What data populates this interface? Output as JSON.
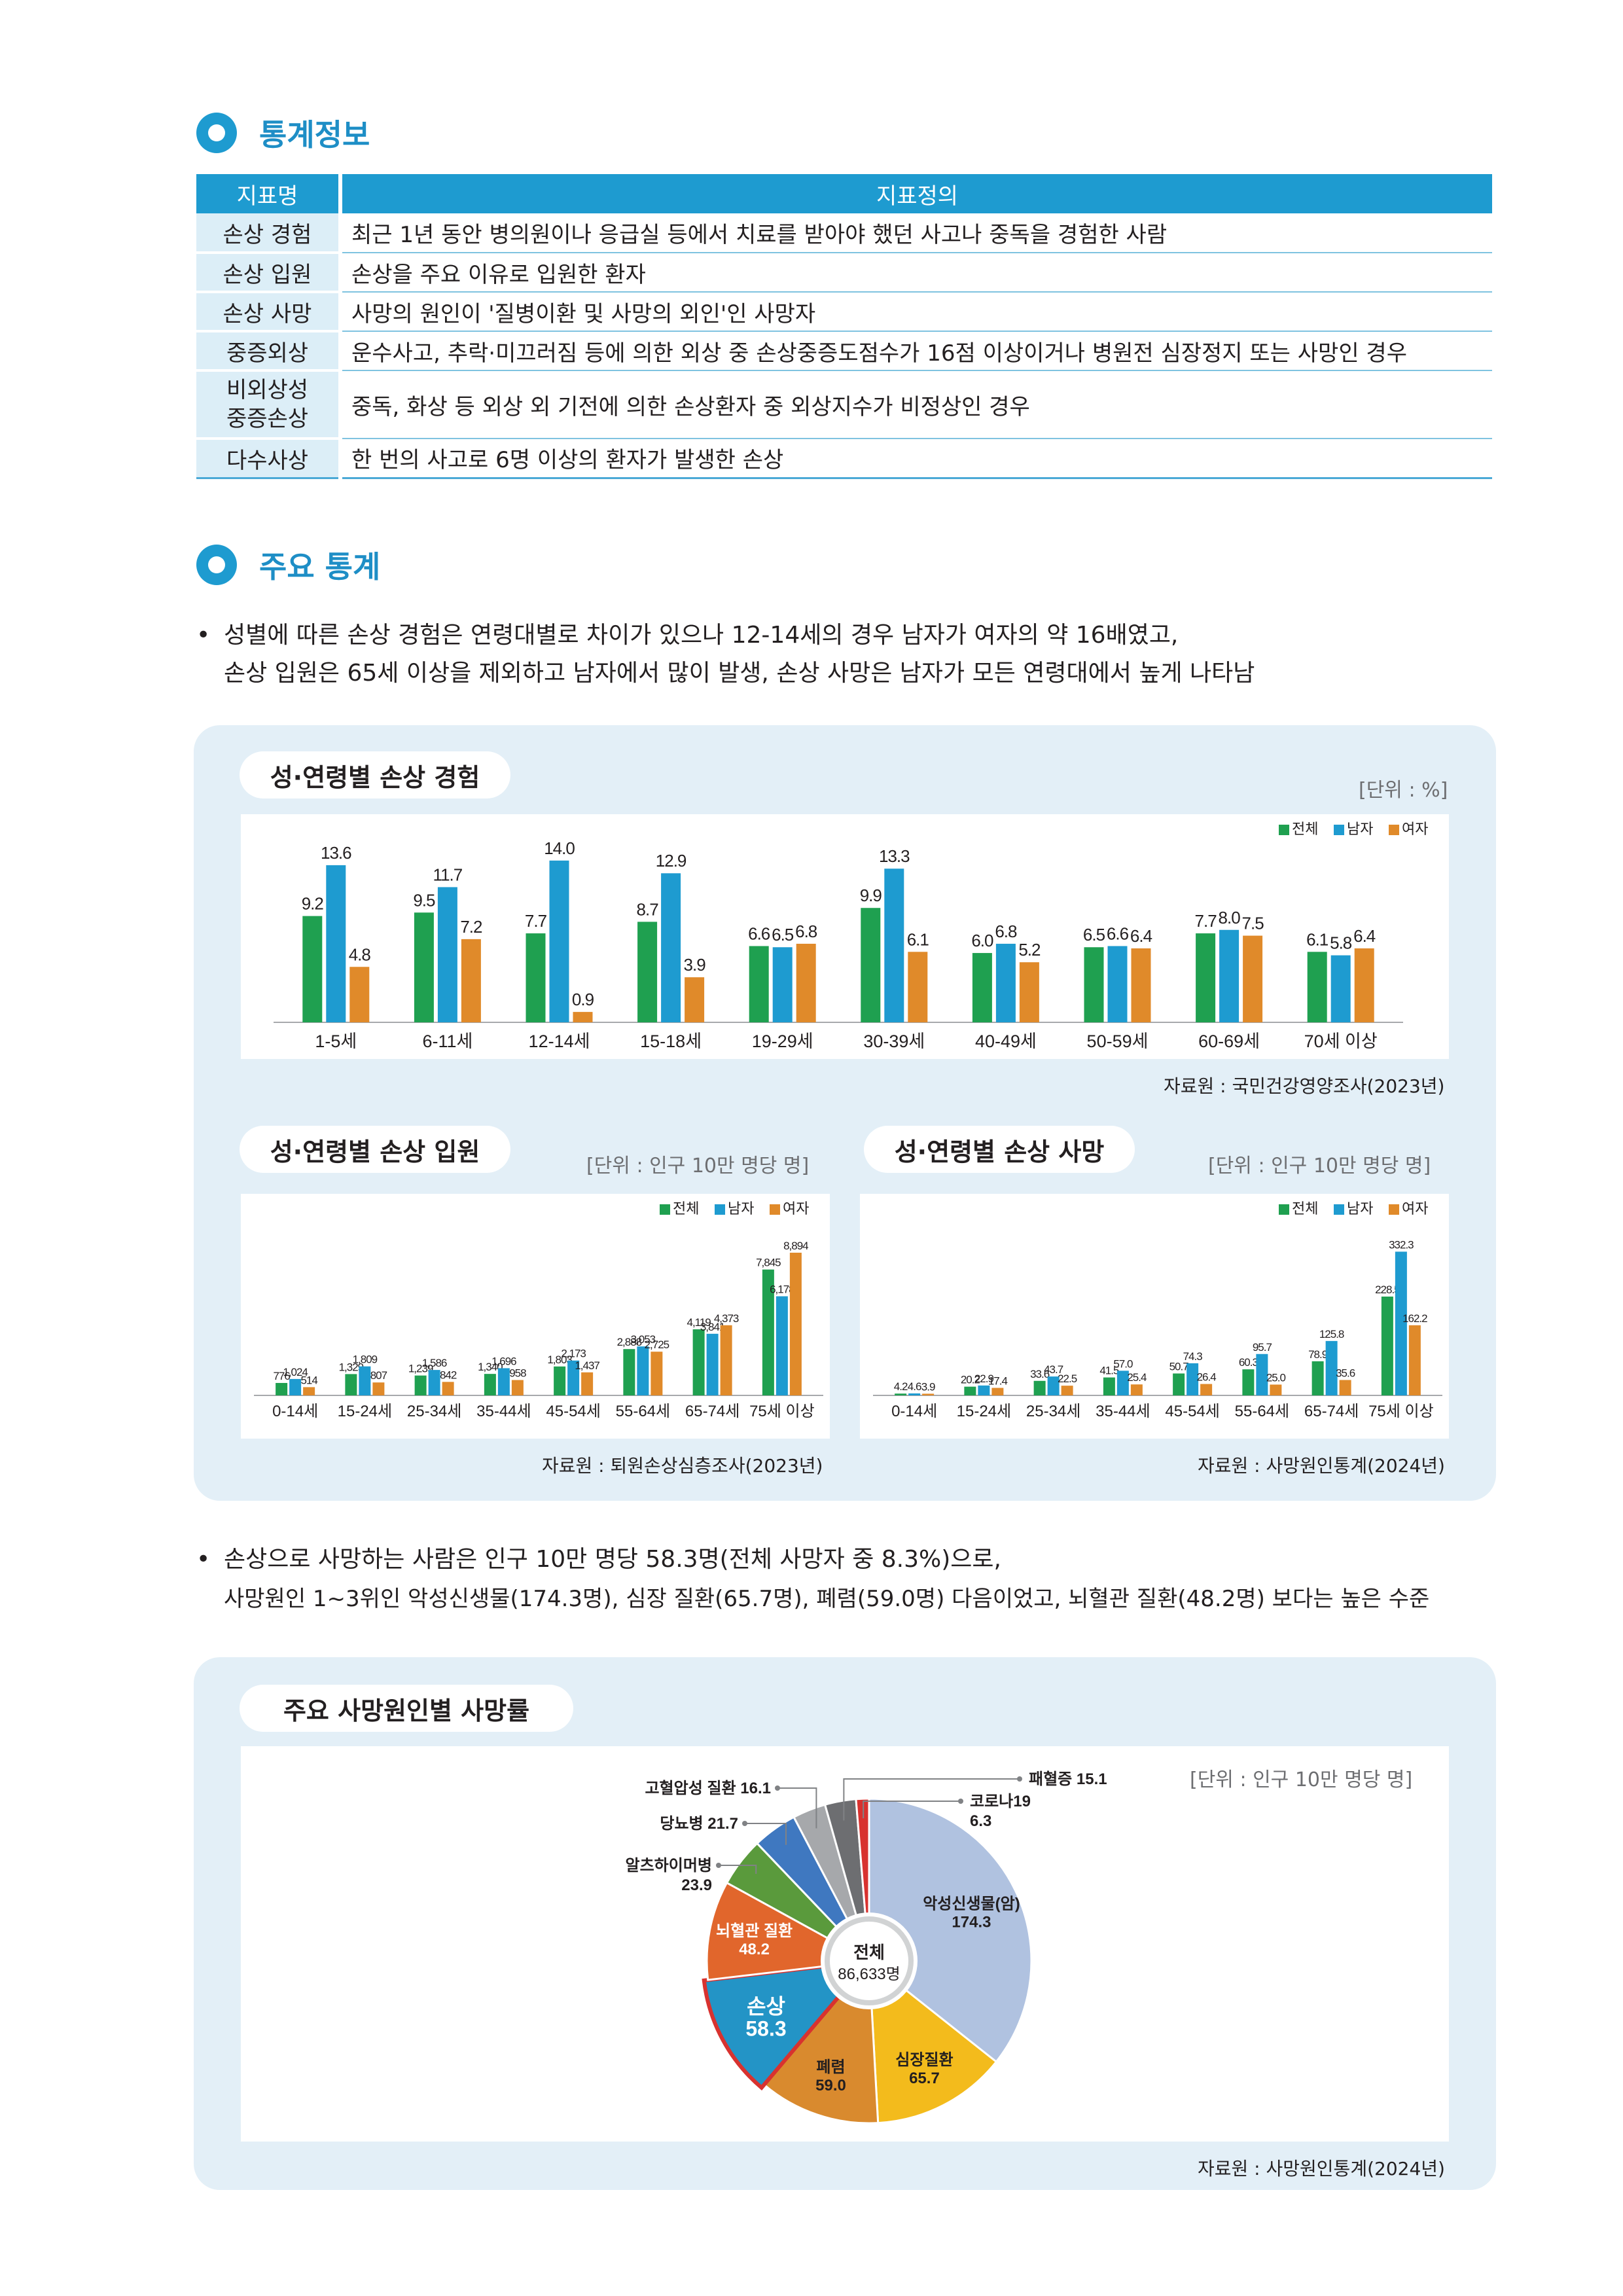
{
  "section1": {
    "title": "통계정보"
  },
  "info_table": {
    "headers": [
      "지표명",
      "지표정의"
    ],
    "rows": [
      {
        "name": "손상 경험",
        "def": "최근 1년 동안 병의원이나 응급실 등에서 치료를 받아야 했던 사고나 중독을 경험한 사람"
      },
      {
        "name": "손상 입원",
        "def": "손상을 주요 이유로 입원한 환자"
      },
      {
        "name": "손상 사망",
        "def": "사망의 원인이 '질병이환 및 사망의 외인'인 사망자"
      },
      {
        "name": "중증외상",
        "def": "운수사고, 추락·미끄러짐 등에 의한 외상 중 손상중증도점수가 16점 이상이거나 병원전 심장정지 또는 사망인 경우"
      },
      {
        "name": "비외상성\n중증손상",
        "def": "중독, 화상 등 외상 외 기전에 의한 손상환자 중 외상지수가 비정상인 경우"
      },
      {
        "name": "다수사상",
        "def": "한 번의 사고로 6명 이상의 환자가 발생한 손상"
      }
    ]
  },
  "section2": {
    "title": "주요 통계"
  },
  "bullet1": {
    "marker": "•",
    "line1": "성별에 따른 손상 경험은 연령대별로 차이가 있으나 12-14세의 경우 남자가 여자의 약 16배였고,",
    "line2": "손상 입원은 65세 이상을 제외하고 남자에서 많이 발생, 손상 사망은 남자가 모든 연령대에서 높게 나타남"
  },
  "bullet2": {
    "marker": "•",
    "line1": "손상으로 사망하는 사람은 인구 10만 명당 58.3명(전체 사망자 중 8.3%)으로,",
    "line2": "사망원인 1~3위인 악성신생물(174.3명), 심장 질환(65.7명), 폐렴(59.0명) 다음이었고, 뇌혈관 질환(48.2명) 보다는 높은 수준"
  },
  "colors": {
    "total": "#1fa050",
    "male": "#1e9bd0",
    "female": "#e08a2a",
    "accent": "#1e9bd0"
  },
  "legend": [
    "전체",
    "남자",
    "여자"
  ],
  "chart_data": [
    {
      "type": "bar",
      "title": "성·연령별 손상 경험",
      "unit": "[단위 : %]",
      "source": "자료원 : 국민건강영양조사(2023년)",
      "categories": [
        "1-5세",
        "6-11세",
        "12-14세",
        "15-18세",
        "19-29세",
        "30-39세",
        "40-49세",
        "50-59세",
        "60-69세",
        "70세 이상"
      ],
      "series": [
        {
          "name": "전체",
          "values": [
            9.2,
            9.5,
            7.7,
            8.7,
            6.6,
            9.9,
            6.0,
            6.5,
            7.7,
            6.1
          ]
        },
        {
          "name": "남자",
          "values": [
            13.6,
            11.7,
            14.0,
            12.9,
            6.5,
            13.3,
            6.8,
            6.6,
            8.0,
            5.8
          ]
        },
        {
          "name": "여자",
          "values": [
            4.8,
            7.2,
            0.9,
            3.9,
            6.8,
            6.1,
            5.2,
            6.4,
            7.5,
            6.4
          ]
        }
      ],
      "labels": [
        [
          "9.2",
          "9.5",
          "7.7",
          "8.7",
          "6.6",
          "9.9",
          "6.0",
          "6.5",
          "7.7",
          "6.1"
        ],
        [
          "13.6",
          "11.7",
          "14.0",
          "12.9",
          "6.5",
          "13.3",
          "6.8",
          "6.6",
          "8.0",
          "5.8"
        ],
        [
          "4.8",
          "7.2",
          "0.9",
          "3.9",
          "6.8",
          "6.1",
          "5.2",
          "6.4",
          "7.5",
          "6.4"
        ]
      ],
      "ylim": [
        0,
        14.5
      ],
      "legend_position": "top-right"
    },
    {
      "type": "bar",
      "title": "성·연령별 손상 입원",
      "unit": "[단위 : 인구 10만 명당 명]",
      "source": "자료원 : 퇴원손상심층조사(2023년)",
      "categories": [
        "0-14세",
        "15-24세",
        "25-34세",
        "35-44세",
        "45-54세",
        "55-64세",
        "65-74세",
        "75세 이상"
      ],
      "series": [
        {
          "name": "전체",
          "values": [
            776,
            1329,
            1239,
            1340,
            1803,
            2888,
            4119,
            7845
          ]
        },
        {
          "name": "남자",
          "values": [
            1024,
            1809,
            1586,
            1696,
            2173,
            3053,
            3841,
            6178
          ]
        },
        {
          "name": "여자",
          "values": [
            514,
            807,
            842,
            958,
            1437,
            2725,
            4373,
            8894
          ]
        }
      ],
      "labels": [
        [
          "776",
          "1,329",
          "1,239",
          "1,340",
          "1,803",
          "2,888",
          "4,119",
          "7,845"
        ],
        [
          "1,024",
          "1,809",
          "1,586",
          "1,696",
          "2,173",
          "3,053",
          "3,841",
          "6,178"
        ],
        [
          "514",
          "807",
          "842",
          "958",
          "1,437",
          "2,725",
          "4,373",
          "8,894"
        ]
      ],
      "ylim": [
        0,
        9300
      ],
      "legend_position": "top-right"
    },
    {
      "type": "bar",
      "title": "성·연령별 손상 사망",
      "unit": "[단위 : 인구 10만 명당 명]",
      "source": "자료원 : 사망원인통계(2024년)",
      "categories": [
        "0-14세",
        "15-24세",
        "25-34세",
        "35-44세",
        "45-54세",
        "55-64세",
        "65-74세",
        "75세 이상"
      ],
      "series": [
        {
          "name": "전체",
          "values": [
            4.2,
            20.2,
            33.6,
            41.5,
            50.7,
            60.3,
            78.9,
            228.5
          ]
        },
        {
          "name": "남자",
          "values": [
            4.6,
            22.9,
            43.7,
            57.0,
            74.3,
            95.7,
            125.8,
            332.3
          ]
        },
        {
          "name": "여자",
          "values": [
            3.9,
            17.4,
            22.5,
            25.4,
            26.4,
            25.0,
            35.6,
            162.2
          ]
        }
      ],
      "labels": [
        [
          "4.2",
          "20.2",
          "33.6",
          "41.5",
          "50.7",
          "60.3",
          "78.9",
          "228.5"
        ],
        [
          "4.6",
          "22.9",
          "43.7",
          "57.0",
          "74.3",
          "95.7",
          "125.8",
          "332.3"
        ],
        [
          "3.9",
          "17.4",
          "22.5",
          "25.4",
          "26.4",
          "25.0",
          "35.6",
          "162.2"
        ]
      ],
      "ylim": [
        0,
        345
      ],
      "legend_position": "top-right"
    },
    {
      "type": "pie",
      "title": "주요 사망원인별 사망률",
      "unit": "[단위 : 인구 10만 명당 명]",
      "source": "자료원 : 사망원인통계(2024년)",
      "center_label": [
        "전체",
        "86,633명"
      ],
      "slices": [
        {
          "name": "악성신생물(암)",
          "value": 174.3,
          "label": "174.3",
          "color": "#b0c2e0"
        },
        {
          "name": "심장질환",
          "value": 65.7,
          "label": "65.7",
          "color": "#f3bb1c"
        },
        {
          "name": "폐렴",
          "value": 59.0,
          "label": "59.0",
          "color": "#d98a2e"
        },
        {
          "name": "손상",
          "value": 58.3,
          "label": "58.3",
          "color": "#2394c6",
          "highlight": true
        },
        {
          "name": "뇌혈관 질환",
          "value": 48.2,
          "label": "48.2",
          "color": "#e1662c"
        },
        {
          "name": "알츠하이머병",
          "value": 23.9,
          "label": "23.9",
          "color": "#5a9a3c"
        },
        {
          "name": "당뇨병",
          "value": 21.7,
          "label": "21.7",
          "color": "#3f78c0"
        },
        {
          "name": "고혈압성 질환",
          "value": 16.1,
          "label": "16.1",
          "color": "#a6a8ab"
        },
        {
          "name": "패혈증",
          "value": 15.1,
          "label": "15.1",
          "color": "#6d6e71"
        },
        {
          "name": "코로나19",
          "value": 6.3,
          "label": "6.3",
          "color": "#d8322f"
        }
      ]
    }
  ]
}
